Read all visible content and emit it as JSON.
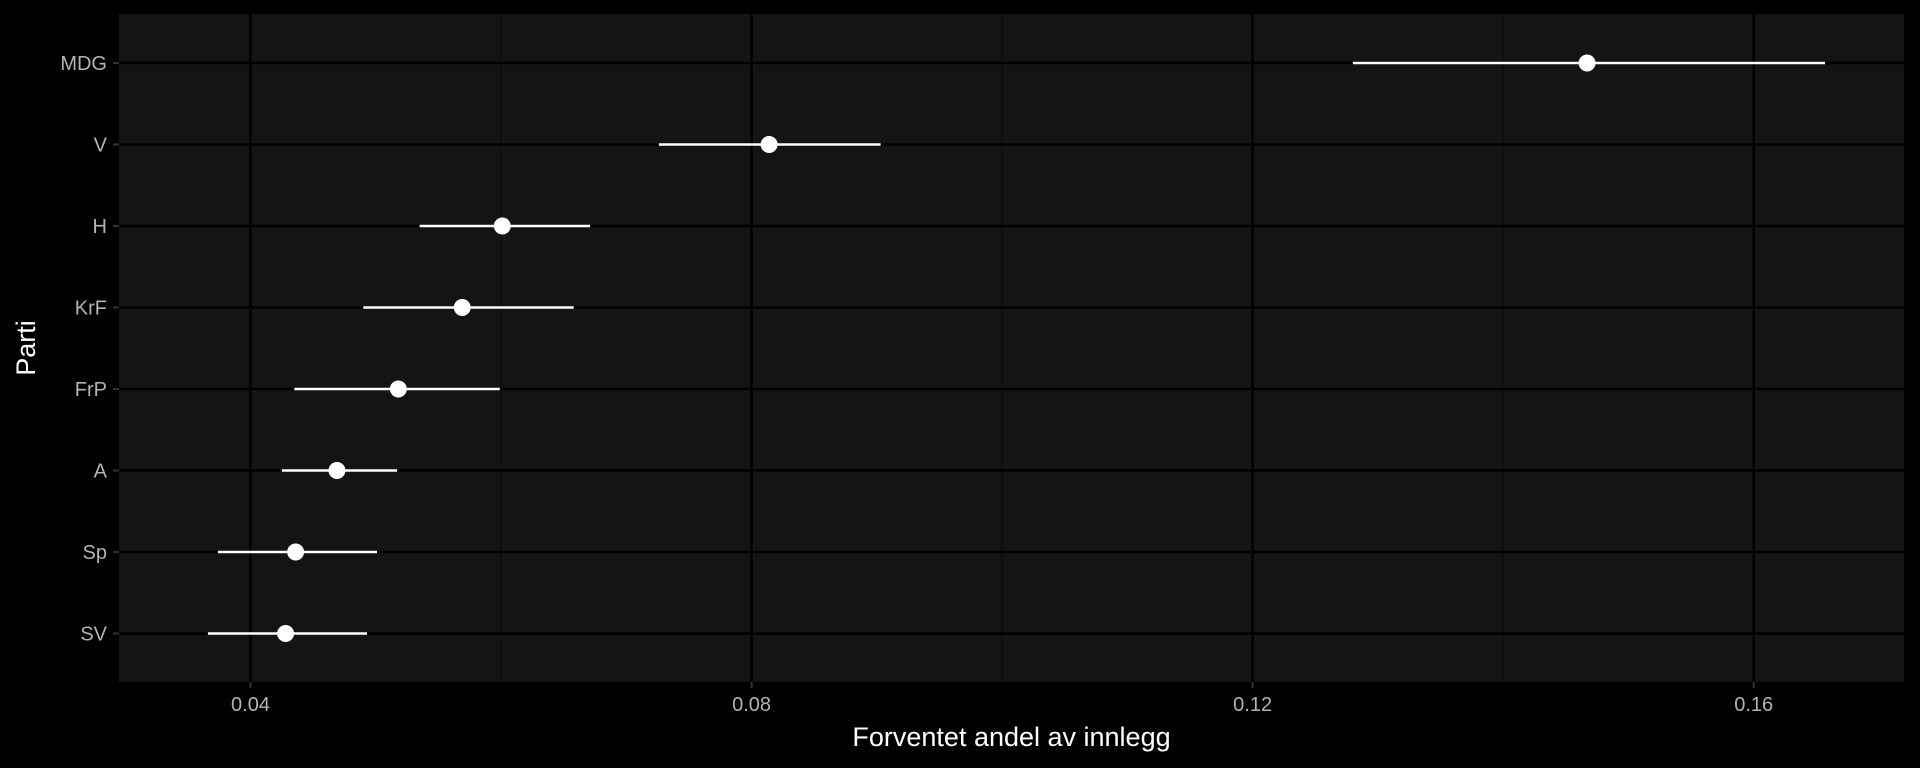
{
  "chart_data": {
    "type": "scatter",
    "subtype": "dot-and-whisker",
    "xlabel": "Forventet andel av innlegg",
    "ylabel": "Parti",
    "xlim": [
      0.0295,
      0.172
    ],
    "x_ticks": [
      0.04,
      0.08,
      0.12,
      0.16
    ],
    "x_tick_labels": [
      "0.04",
      "0.08",
      "0.12",
      "0.16"
    ],
    "categories": [
      "MDG",
      "V",
      "H",
      "KrF",
      "FrP",
      "A",
      "Sp",
      "SV"
    ],
    "values": [
      0.1467,
      0.0814,
      0.0601,
      0.0569,
      0.0518,
      0.0469,
      0.0436,
      0.0428
    ],
    "lower": [
      0.128,
      0.0726,
      0.0535,
      0.049,
      0.0435,
      0.0425,
      0.0374,
      0.0366
    ],
    "upper": [
      0.1657,
      0.0903,
      0.0671,
      0.0658,
      0.0599,
      0.0517,
      0.0501,
      0.0493
    ],
    "grid": true,
    "colors": {
      "background": "#000000",
      "panel": "#141414",
      "grid_major": "#000000",
      "grid_minor": "#0c0c0c",
      "point": "#ffffff",
      "interval": "#ffffff",
      "tick_text": "#b3b3b3",
      "title_text": "#ffffff"
    }
  }
}
